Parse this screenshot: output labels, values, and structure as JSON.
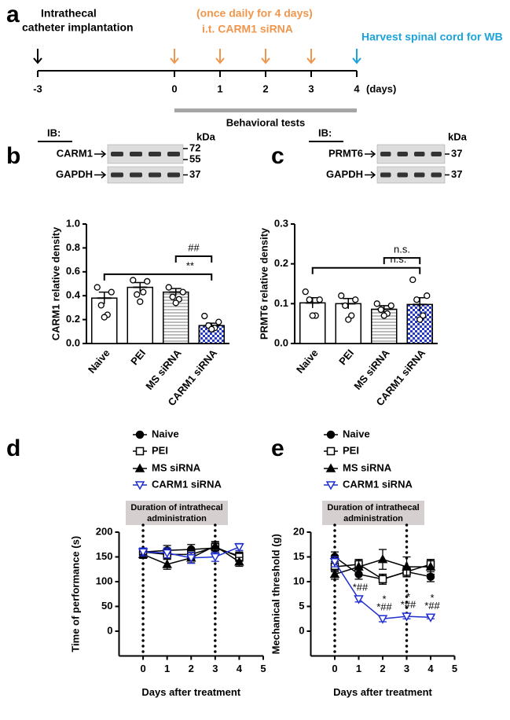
{
  "panel_labels": [
    "a",
    "b",
    "c",
    "d",
    "e"
  ],
  "timeline": {
    "xlim": [
      -3,
      4
    ],
    "xticks": [
      -3,
      0,
      1,
      2,
      3,
      4
    ],
    "unit": "(days)",
    "events": [
      {
        "x": [
          -3
        ],
        "color": "#000000",
        "lines": [
          "Intrathecal",
          "catheter implantation"
        ]
      },
      {
        "x": [
          0,
          1,
          2,
          3
        ],
        "color": "#f0964c",
        "lines": [
          "(once daily for 4 days)",
          "i.t. CARM1 siRNA"
        ]
      },
      {
        "x": [
          4
        ],
        "color": "#1ca3da",
        "lines": [
          "Harvest spinal cord for WB"
        ]
      }
    ],
    "behavioral_tests": {
      "label": "Behavioral tests",
      "range": [
        0,
        4
      ]
    }
  },
  "blots": [
    {
      "header": "IB:",
      "unit": "kDa",
      "rows": [
        {
          "label": "CARM1",
          "markers": [
            72,
            55
          ]
        },
        {
          "label": "GAPDH",
          "markers": [
            37
          ]
        }
      ]
    },
    {
      "header": "IB:",
      "unit": "kDa",
      "rows": [
        {
          "label": "PRMT6",
          "markers": [
            37
          ]
        },
        {
          "label": "GAPDH",
          "markers": [
            37
          ]
        }
      ]
    }
  ],
  "chart_data": [
    {
      "type": "bar",
      "ylabel": "CARM1 relative density",
      "categories": [
        "Naive",
        "PEI",
        "MS siRNA",
        "CARM1 siRNA"
      ],
      "values": [
        0.38,
        0.47,
        0.43,
        0.15
      ],
      "errors": [
        0.05,
        0.04,
        0.03,
        0.02
      ],
      "points": [
        [
          0.47,
          0.43,
          0.32,
          0.24,
          0.22
        ],
        [
          0.53,
          0.52,
          0.41,
          0.43,
          0.35
        ],
        [
          0.47,
          0.43,
          0.39,
          0.37,
          0.34
        ],
        [
          0.23,
          0.18,
          0.15,
          0.13,
          0.12
        ]
      ],
      "patterns": [
        "solid",
        "solid",
        "horizontal-lines",
        "checkerboard"
      ],
      "pattern_color": "#2438c8",
      "ylim": [
        0,
        1.0
      ],
      "yticks": [
        {
          "value": 0,
          "label": "0.0"
        },
        0.2,
        0.4,
        0.6,
        0.8,
        {
          "value": 1.0,
          "label": "1.0"
        }
      ],
      "comparisons": [
        {
          "from": 0,
          "to": 3,
          "y": 0.58,
          "label": "**"
        },
        {
          "from": 2,
          "to": 3,
          "y": 0.73,
          "label": "##"
        }
      ]
    },
    {
      "type": "bar",
      "ylabel": "PRMT6 relative density",
      "categories": [
        "Naive",
        "PEI",
        "MS siRNA",
        "CARM1 siRNA"
      ],
      "values": [
        0.102,
        0.1,
        0.086,
        0.098
      ],
      "errors": [
        0.013,
        0.013,
        0.009,
        0.017
      ],
      "points": [
        [
          0.13,
          0.11,
          0.11,
          0.07,
          0.07
        ],
        [
          0.12,
          0.11,
          0.095,
          0.07,
          0.06
        ],
        [
          0.1,
          0.095,
          0.085,
          0.075,
          0.07
        ],
        [
          0.16,
          0.12,
          0.11,
          0.07,
          0.06
        ]
      ],
      "patterns": [
        "solid",
        "solid",
        "horizontal-lines",
        "checkerboard"
      ],
      "pattern_color": "#2438c8",
      "ylim": [
        0,
        0.3
      ],
      "yticks": [
        {
          "value": 0,
          "label": "0.0"
        },
        0.1,
        0.2,
        0.3
      ],
      "comparisons": [
        {
          "from": 0,
          "to": 3,
          "y": 0.19,
          "label": "n.s."
        },
        {
          "from": 2,
          "to": 3,
          "y": 0.215,
          "label": "n.s."
        }
      ]
    },
    {
      "type": "line",
      "xlabel": "Days after treatment",
      "ylabel": "Time of performance (s)",
      "x": [
        0,
        1,
        2,
        3,
        4
      ],
      "xlim": [
        -1,
        5
      ],
      "xticks": [
        0,
        1,
        2,
        3,
        4,
        5
      ],
      "ylim": [
        -50,
        200
      ],
      "yticks": [
        0,
        50,
        100,
        150,
        200
      ],
      "vlines": [
        0,
        3
      ],
      "duration_box": [
        "Duration of intrathecal",
        "administration"
      ],
      "series": [
        {
          "name": "Naive",
          "color": "#000000",
          "marker": "circle",
          "filled": true,
          "values": [
            160,
            163,
            165,
            168,
            152
          ],
          "errors": [
            8,
            10,
            10,
            9,
            8
          ]
        },
        {
          "name": "PEI",
          "color": "#000000",
          "marker": "square",
          "filled": false,
          "values": [
            160,
            155,
            155,
            170,
            150
          ],
          "errors": [
            8,
            9,
            9,
            10,
            9
          ]
        },
        {
          "name": "MS siRNA",
          "color": "#000000",
          "marker": "triangle",
          "filled": true,
          "values": [
            155,
            135,
            148,
            172,
            140
          ],
          "errors": [
            8,
            10,
            10,
            9,
            9
          ]
        },
        {
          "name": "CARM1 siRNA",
          "color": "#1f2ed0",
          "marker": "triangle-down",
          "filled": false,
          "values": [
            160,
            158,
            148,
            150,
            170
          ],
          "errors": [
            8,
            10,
            11,
            9,
            7
          ]
        }
      ],
      "annotations": []
    },
    {
      "type": "line",
      "xlabel": "Days after treatment",
      "ylabel": "Mechanical threshold (g)",
      "x": [
        0,
        1,
        2,
        3,
        4
      ],
      "xlim": [
        -1,
        5
      ],
      "xticks": [
        0,
        1,
        2,
        3,
        4,
        5
      ],
      "ylim": [
        -5,
        20
      ],
      "yticks": [
        0,
        5,
        10,
        15,
        20
      ],
      "vlines": [
        0,
        3
      ],
      "duration_box": [
        "Duration of intrathecal",
        "administration"
      ],
      "series": [
        {
          "name": "Naive",
          "color": "#000000",
          "marker": "circle",
          "filled": true,
          "values": [
            15,
            11.5,
            10.5,
            12,
            11
          ],
          "errors": [
            1,
            1,
            1,
            1,
            1
          ]
        },
        {
          "name": "PEI",
          "color": "#000000",
          "marker": "square",
          "filled": false,
          "values": [
            13,
            13.5,
            10.5,
            12,
            13.5
          ],
          "errors": [
            1,
            1,
            1,
            1,
            1
          ]
        },
        {
          "name": "MS siRNA",
          "color": "#000000",
          "marker": "triangle",
          "filled": true,
          "values": [
            11.5,
            13,
            14.5,
            13,
            13
          ],
          "errors": [
            1,
            1.5,
            2,
            2,
            1.5
          ]
        },
        {
          "name": "CARM1 siRNA",
          "color": "#1f2ed0",
          "marker": "triangle-down",
          "filled": false,
          "values": [
            14,
            6.5,
            2.5,
            3,
            2.8
          ],
          "errors": [
            1,
            0.6,
            0.6,
            0.5,
            0.3
          ]
        }
      ],
      "annotations": [
        {
          "x": 1,
          "lines": [
            "*##"
          ]
        },
        {
          "x": 2,
          "lines": [
            "*",
            "*##"
          ]
        },
        {
          "x": 3,
          "lines": [
            "*",
            "*##"
          ]
        },
        {
          "x": 4,
          "lines": [
            "*",
            "*##"
          ]
        }
      ]
    }
  ]
}
